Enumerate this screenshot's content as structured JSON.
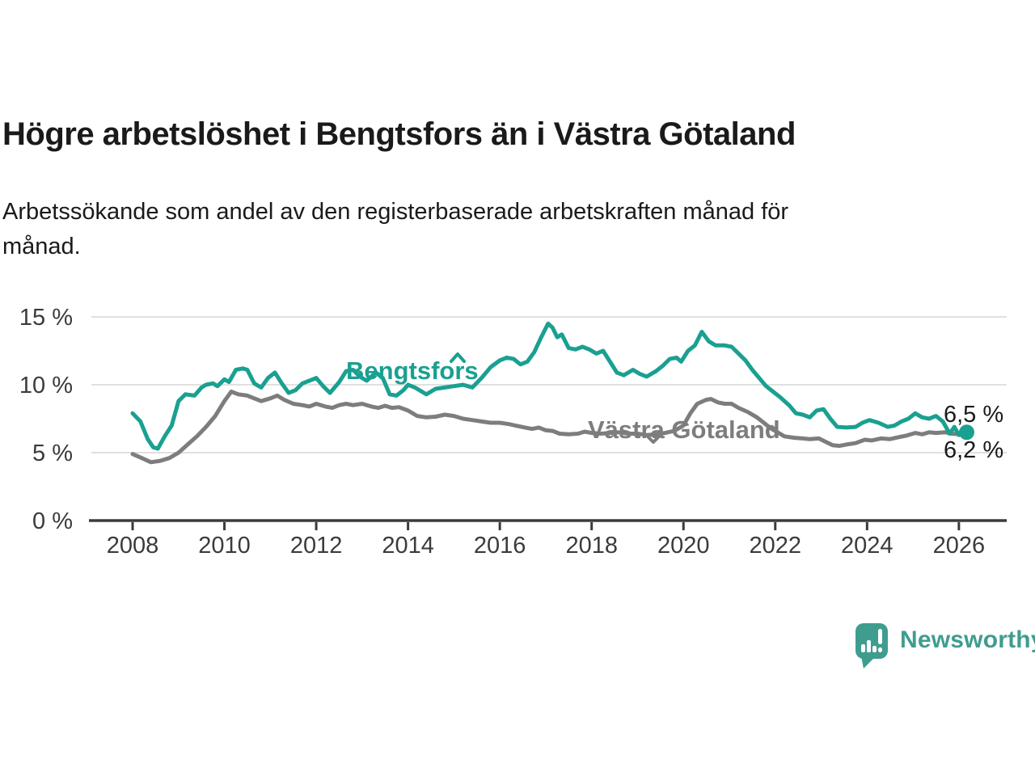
{
  "header": {
    "title": "Högre arbetslöshet i Bengtsfors än i Västra Götaland",
    "subtitle_lines": [
      "Arbetssökande som andel av den registerbaserade arbetskraften månad för",
      "månad."
    ]
  },
  "branding": {
    "name": "Newsworthy",
    "logo_color": "#3f9d8f",
    "logo_icon": "speech-bubble-bar-chart-exclamation"
  },
  "chart_data": {
    "type": "line",
    "title": "Högre arbetslöshet i Bengtsfors än i Västra Götaland",
    "subtitle": "Arbetssökande som andel av den registerbaserade arbetskraften månad för månad.",
    "unit": "%",
    "grid": true,
    "legend_position": "inline-labels",
    "ylim": [
      0,
      15
    ],
    "xlim": [
      2007.1,
      2027.05
    ],
    "y_ticks": [
      {
        "value": 0,
        "label": "0 %"
      },
      {
        "value": 5,
        "label": "5 %"
      },
      {
        "value": 10,
        "label": "10 %"
      },
      {
        "value": 15,
        "label": "15 %"
      }
    ],
    "x_ticks": [
      {
        "value": 2008,
        "label": "2008"
      },
      {
        "value": 2010,
        "label": "2010"
      },
      {
        "value": 2012,
        "label": "2012"
      },
      {
        "value": 2014,
        "label": "2014"
      },
      {
        "value": 2016,
        "label": "2016"
      },
      {
        "value": 2018,
        "label": "2018"
      },
      {
        "value": 2020,
        "label": "2020"
      },
      {
        "value": 2022,
        "label": "2022"
      },
      {
        "value": 2024,
        "label": "2024"
      },
      {
        "value": 2026,
        "label": "2026"
      }
    ],
    "series": [
      {
        "name": "Bengtsfors",
        "color": "#1aa091",
        "end_label": "6,5 %",
        "end_value": 6.5,
        "end_dot": true,
        "points": [
          [
            2008.0,
            7.9
          ],
          [
            2008.17,
            7.3
          ],
          [
            2008.33,
            6.0
          ],
          [
            2008.45,
            5.4
          ],
          [
            2008.55,
            5.3
          ],
          [
            2008.7,
            6.2
          ],
          [
            2008.85,
            7.0
          ],
          [
            2009.0,
            8.8
          ],
          [
            2009.15,
            9.3
          ],
          [
            2009.35,
            9.2
          ],
          [
            2009.5,
            9.8
          ],
          [
            2009.6,
            10.0
          ],
          [
            2009.75,
            10.1
          ],
          [
            2009.85,
            9.9
          ],
          [
            2010.0,
            10.4
          ],
          [
            2010.1,
            10.2
          ],
          [
            2010.25,
            11.1
          ],
          [
            2010.4,
            11.2
          ],
          [
            2010.5,
            11.1
          ],
          [
            2010.65,
            10.1
          ],
          [
            2010.8,
            9.8
          ],
          [
            2010.95,
            10.5
          ],
          [
            2011.1,
            10.9
          ],
          [
            2011.25,
            10.1
          ],
          [
            2011.4,
            9.4
          ],
          [
            2011.55,
            9.6
          ],
          [
            2011.7,
            10.1
          ],
          [
            2011.85,
            10.3
          ],
          [
            2012.0,
            10.5
          ],
          [
            2012.15,
            9.9
          ],
          [
            2012.3,
            9.4
          ],
          [
            2012.5,
            10.2
          ],
          [
            2012.65,
            11.0
          ],
          [
            2012.8,
            11.1
          ],
          [
            2012.95,
            10.6
          ],
          [
            2013.1,
            10.3
          ],
          [
            2013.3,
            10.9
          ],
          [
            2013.45,
            10.5
          ],
          [
            2013.6,
            9.3
          ],
          [
            2013.75,
            9.2
          ],
          [
            2013.9,
            9.6
          ],
          [
            2014.0,
            10.0
          ],
          [
            2014.15,
            9.8
          ],
          [
            2014.4,
            9.3
          ],
          [
            2014.6,
            9.7
          ],
          [
            2014.8,
            9.8
          ],
          [
            2015.0,
            9.9
          ],
          [
            2015.2,
            10.0
          ],
          [
            2015.4,
            9.8
          ],
          [
            2015.6,
            10.5
          ],
          [
            2015.8,
            11.3
          ],
          [
            2016.0,
            11.8
          ],
          [
            2016.15,
            12.0
          ],
          [
            2016.3,
            11.9
          ],
          [
            2016.45,
            11.5
          ],
          [
            2016.6,
            11.7
          ],
          [
            2016.75,
            12.4
          ],
          [
            2016.9,
            13.5
          ],
          [
            2017.05,
            14.5
          ],
          [
            2017.15,
            14.2
          ],
          [
            2017.25,
            13.5
          ],
          [
            2017.35,
            13.7
          ],
          [
            2017.5,
            12.7
          ],
          [
            2017.65,
            12.6
          ],
          [
            2017.8,
            12.8
          ],
          [
            2017.95,
            12.6
          ],
          [
            2018.1,
            12.3
          ],
          [
            2018.25,
            12.5
          ],
          [
            2018.4,
            11.7
          ],
          [
            2018.55,
            10.9
          ],
          [
            2018.7,
            10.7
          ],
          [
            2018.9,
            11.1
          ],
          [
            2019.05,
            10.8
          ],
          [
            2019.2,
            10.6
          ],
          [
            2019.4,
            11.0
          ],
          [
            2019.55,
            11.4
          ],
          [
            2019.7,
            11.9
          ],
          [
            2019.85,
            12.0
          ],
          [
            2019.95,
            11.7
          ],
          [
            2020.1,
            12.5
          ],
          [
            2020.25,
            12.9
          ],
          [
            2020.4,
            13.9
          ],
          [
            2020.55,
            13.2
          ],
          [
            2020.7,
            12.9
          ],
          [
            2020.9,
            12.9
          ],
          [
            2021.05,
            12.8
          ],
          [
            2021.2,
            12.3
          ],
          [
            2021.35,
            11.8
          ],
          [
            2021.5,
            11.1
          ],
          [
            2021.65,
            10.5
          ],
          [
            2021.8,
            9.9
          ],
          [
            2021.95,
            9.5
          ],
          [
            2022.1,
            9.1
          ],
          [
            2022.3,
            8.5
          ],
          [
            2022.45,
            7.9
          ],
          [
            2022.6,
            7.8
          ],
          [
            2022.75,
            7.6
          ],
          [
            2022.9,
            8.1
          ],
          [
            2023.05,
            8.2
          ],
          [
            2023.2,
            7.5
          ],
          [
            2023.35,
            6.9
          ],
          [
            2023.55,
            6.85
          ],
          [
            2023.75,
            6.9
          ],
          [
            2023.9,
            7.2
          ],
          [
            2024.05,
            7.4
          ],
          [
            2024.25,
            7.2
          ],
          [
            2024.45,
            6.9
          ],
          [
            2024.6,
            7.0
          ],
          [
            2024.75,
            7.3
          ],
          [
            2024.9,
            7.5
          ],
          [
            2025.05,
            7.9
          ],
          [
            2025.2,
            7.6
          ],
          [
            2025.35,
            7.5
          ],
          [
            2025.5,
            7.7
          ],
          [
            2025.65,
            7.3
          ],
          [
            2025.8,
            6.4
          ],
          [
            2025.9,
            6.9
          ],
          [
            2026.0,
            6.3
          ],
          [
            2026.08,
            6.4
          ],
          [
            2026.17,
            6.5
          ]
        ]
      },
      {
        "name": "Västra Götaland",
        "color": "#7d7d7d",
        "end_label": "6,2 %",
        "end_value": 6.2,
        "end_dot": false,
        "points": [
          [
            2008.0,
            4.9
          ],
          [
            2008.2,
            4.6
          ],
          [
            2008.4,
            4.3
          ],
          [
            2008.6,
            4.4
          ],
          [
            2008.8,
            4.6
          ],
          [
            2009.0,
            5.0
          ],
          [
            2009.2,
            5.6
          ],
          [
            2009.4,
            6.2
          ],
          [
            2009.6,
            6.9
          ],
          [
            2009.8,
            7.7
          ],
          [
            2010.0,
            8.8
          ],
          [
            2010.15,
            9.5
          ],
          [
            2010.3,
            9.3
          ],
          [
            2010.5,
            9.2
          ],
          [
            2010.65,
            9.0
          ],
          [
            2010.8,
            8.8
          ],
          [
            2011.0,
            9.0
          ],
          [
            2011.15,
            9.2
          ],
          [
            2011.3,
            8.9
          ],
          [
            2011.5,
            8.6
          ],
          [
            2011.7,
            8.5
          ],
          [
            2011.85,
            8.4
          ],
          [
            2012.0,
            8.6
          ],
          [
            2012.2,
            8.4
          ],
          [
            2012.35,
            8.3
          ],
          [
            2012.5,
            8.5
          ],
          [
            2012.65,
            8.6
          ],
          [
            2012.8,
            8.5
          ],
          [
            2013.0,
            8.6
          ],
          [
            2013.2,
            8.4
          ],
          [
            2013.35,
            8.3
          ],
          [
            2013.5,
            8.45
          ],
          [
            2013.65,
            8.3
          ],
          [
            2013.8,
            8.35
          ],
          [
            2014.0,
            8.1
          ],
          [
            2014.2,
            7.7
          ],
          [
            2014.4,
            7.6
          ],
          [
            2014.6,
            7.65
          ],
          [
            2014.8,
            7.8
          ],
          [
            2015.0,
            7.7
          ],
          [
            2015.2,
            7.5
          ],
          [
            2015.4,
            7.4
          ],
          [
            2015.6,
            7.3
          ],
          [
            2015.8,
            7.2
          ],
          [
            2016.0,
            7.2
          ],
          [
            2016.2,
            7.1
          ],
          [
            2016.4,
            6.95
          ],
          [
            2016.55,
            6.85
          ],
          [
            2016.7,
            6.75
          ],
          [
            2016.85,
            6.85
          ],
          [
            2017.0,
            6.65
          ],
          [
            2017.15,
            6.6
          ],
          [
            2017.3,
            6.4
          ],
          [
            2017.5,
            6.35
          ],
          [
            2017.7,
            6.4
          ],
          [
            2017.85,
            6.55
          ],
          [
            2018.0,
            6.45
          ],
          [
            2018.2,
            6.4
          ],
          [
            2018.4,
            6.45
          ],
          [
            2018.6,
            6.5
          ],
          [
            2018.8,
            6.4
          ],
          [
            2019.0,
            6.4
          ],
          [
            2019.2,
            6.3
          ],
          [
            2019.4,
            6.35
          ],
          [
            2019.6,
            6.45
          ],
          [
            2019.8,
            6.6
          ],
          [
            2020.0,
            7.0
          ],
          [
            2020.15,
            7.9
          ],
          [
            2020.3,
            8.6
          ],
          [
            2020.5,
            8.9
          ],
          [
            2020.6,
            8.95
          ],
          [
            2020.75,
            8.7
          ],
          [
            2020.9,
            8.6
          ],
          [
            2021.05,
            8.6
          ],
          [
            2021.2,
            8.3
          ],
          [
            2021.4,
            8.0
          ],
          [
            2021.6,
            7.6
          ],
          [
            2021.75,
            7.2
          ],
          [
            2021.9,
            6.8
          ],
          [
            2022.05,
            6.5
          ],
          [
            2022.2,
            6.2
          ],
          [
            2022.4,
            6.1
          ],
          [
            2022.6,
            6.05
          ],
          [
            2022.75,
            6.0
          ],
          [
            2022.95,
            6.05
          ],
          [
            2023.1,
            5.8
          ],
          [
            2023.25,
            5.55
          ],
          [
            2023.4,
            5.5
          ],
          [
            2023.55,
            5.6
          ],
          [
            2023.75,
            5.7
          ],
          [
            2023.95,
            5.95
          ],
          [
            2024.1,
            5.9
          ],
          [
            2024.3,
            6.05
          ],
          [
            2024.5,
            6.0
          ],
          [
            2024.7,
            6.15
          ],
          [
            2024.85,
            6.25
          ],
          [
            2025.05,
            6.45
          ],
          [
            2025.2,
            6.35
          ],
          [
            2025.35,
            6.5
          ],
          [
            2025.5,
            6.45
          ],
          [
            2025.7,
            6.5
          ],
          [
            2025.85,
            6.4
          ],
          [
            2026.0,
            6.35
          ],
          [
            2026.17,
            6.2
          ]
        ]
      }
    ]
  }
}
